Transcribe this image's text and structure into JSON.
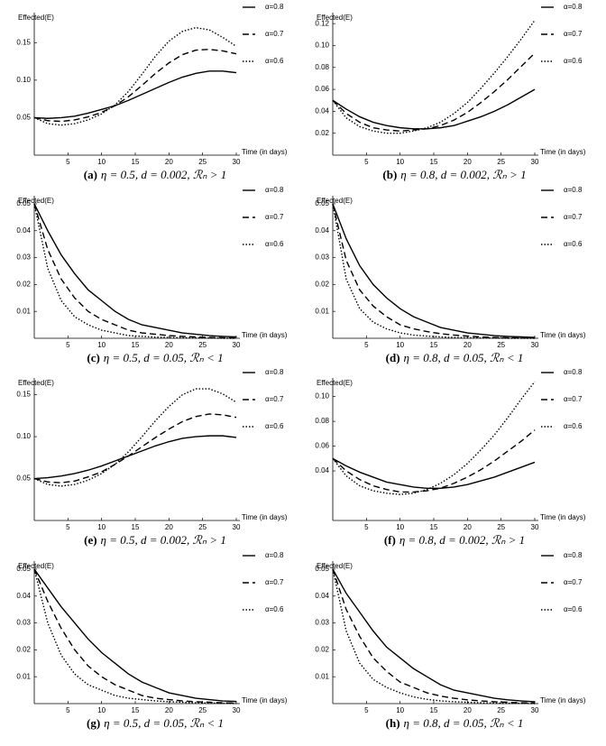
{
  "chart_data": [
    {
      "type": "line",
      "label": "(a)",
      "caption": "η = 0.5, d = 0.002, ℛₙ > 1",
      "ylabel": "Effected(E)",
      "xlabel": "Time (in days)",
      "x": [
        0,
        2,
        4,
        6,
        8,
        10,
        12,
        14,
        16,
        18,
        20,
        22,
        24,
        26,
        28,
        30
      ],
      "xlim": [
        0,
        30
      ],
      "xticks": [
        5,
        10,
        15,
        20,
        25,
        30
      ],
      "ylim": [
        0,
        0.19
      ],
      "yticks": [
        0.05,
        {
          "value": 0.1,
          "label": "0.10"
        },
        0.15
      ],
      "series": [
        {
          "name": "α=0.8",
          "color": "#000",
          "dash": "solid",
          "values": [
            0.05,
            0.049,
            0.05,
            0.052,
            0.056,
            0.061,
            0.066,
            0.073,
            0.081,
            0.089,
            0.097,
            0.104,
            0.109,
            0.112,
            0.112,
            0.11
          ]
        },
        {
          "name": "α=0.7",
          "color": "#000",
          "dash": "dashed",
          "values": [
            0.05,
            0.046,
            0.045,
            0.047,
            0.051,
            0.057,
            0.066,
            0.078,
            0.093,
            0.109,
            0.123,
            0.134,
            0.14,
            0.141,
            0.139,
            0.135
          ]
        },
        {
          "name": "α=0.6",
          "color": "#000",
          "dash": "dotted",
          "values": [
            0.05,
            0.042,
            0.04,
            0.042,
            0.047,
            0.055,
            0.067,
            0.085,
            0.108,
            0.132,
            0.152,
            0.165,
            0.17,
            0.167,
            0.157,
            0.145
          ]
        }
      ]
    },
    {
      "type": "line",
      "label": "(b)",
      "caption": "η = 0.8, d = 0.002, ℛₙ > 1",
      "ylabel": "Effected(E)",
      "xlabel": "Time (in days)",
      "x": [
        0,
        2,
        4,
        6,
        8,
        10,
        12,
        14,
        16,
        18,
        20,
        22,
        24,
        26,
        28,
        30
      ],
      "xlim": [
        0,
        30
      ],
      "xticks": [
        5,
        10,
        15,
        20,
        25,
        30
      ],
      "ylim": [
        0,
        0.13
      ],
      "yticks": [
        0.02,
        0.04,
        0.06,
        0.08,
        {
          "value": 0.1,
          "label": "0.10"
        },
        0.12
      ],
      "series": [
        {
          "name": "α=0.8",
          "color": "#000",
          "dash": "solid",
          "values": [
            0.05,
            0.042,
            0.035,
            0.03,
            0.027,
            0.025,
            0.024,
            0.024,
            0.025,
            0.027,
            0.031,
            0.035,
            0.04,
            0.046,
            0.053,
            0.06
          ]
        },
        {
          "name": "α=0.7",
          "color": "#000",
          "dash": "dashed",
          "values": [
            0.05,
            0.038,
            0.03,
            0.025,
            0.023,
            0.022,
            0.023,
            0.024,
            0.027,
            0.032,
            0.039,
            0.048,
            0.058,
            0.069,
            0.081,
            0.093
          ]
        },
        {
          "name": "α=0.6",
          "color": "#000",
          "dash": "dotted",
          "values": [
            0.05,
            0.034,
            0.026,
            0.022,
            0.02,
            0.02,
            0.022,
            0.025,
            0.03,
            0.038,
            0.048,
            0.061,
            0.075,
            0.09,
            0.106,
            0.123
          ]
        }
      ]
    },
    {
      "type": "line",
      "label": "(c)",
      "caption": "η = 0.5, d = 0.05, ℛₙ < 1",
      "ylabel": "Effected(E)",
      "xlabel": "Time (in days)",
      "x": [
        0,
        2,
        4,
        6,
        8,
        10,
        12,
        14,
        16,
        18,
        20,
        22,
        24,
        26,
        28,
        30
      ],
      "xlim": [
        0,
        30
      ],
      "xticks": [
        5,
        10,
        15,
        20,
        25,
        30
      ],
      "ylim": [
        0,
        0.053
      ],
      "yticks": [
        0.01,
        0.02,
        0.03,
        0.04,
        0.05
      ],
      "series": [
        {
          "name": "α=0.8",
          "color": "#000",
          "dash": "solid",
          "values": [
            0.05,
            0.04,
            0.031,
            0.024,
            0.018,
            0.014,
            0.01,
            0.007,
            0.005,
            0.004,
            0.003,
            0.002,
            0.0015,
            0.001,
            0.0007,
            0.0005
          ]
        },
        {
          "name": "α=0.7",
          "color": "#000",
          "dash": "dashed",
          "values": [
            0.05,
            0.033,
            0.022,
            0.015,
            0.01,
            0.007,
            0.005,
            0.003,
            0.002,
            0.0015,
            0.001,
            0.0007,
            0.0005,
            0.0003,
            0.0002,
            0.0001
          ]
        },
        {
          "name": "α=0.6",
          "color": "#000",
          "dash": "dotted",
          "values": [
            0.05,
            0.026,
            0.014,
            0.008,
            0.005,
            0.003,
            0.002,
            0.001,
            0.0007,
            0.0004,
            0.0003,
            0.0002,
            0.0001,
            0.0001,
            0,
            0
          ]
        }
      ]
    },
    {
      "type": "line",
      "label": "(d)",
      "caption": "η = 0.8, d = 0.05, ℛₙ < 1",
      "ylabel": "Effected(E)",
      "xlabel": "Time (in days)",
      "x": [
        0,
        2,
        4,
        6,
        8,
        10,
        12,
        14,
        16,
        18,
        20,
        22,
        24,
        26,
        28,
        30
      ],
      "xlim": [
        0,
        30
      ],
      "xticks": [
        5,
        10,
        15,
        20,
        25,
        30
      ],
      "ylim": [
        0,
        0.053
      ],
      "yticks": [
        0.01,
        0.02,
        0.03,
        0.04,
        0.05
      ],
      "series": [
        {
          "name": "α=0.8",
          "color": "#000",
          "dash": "solid",
          "values": [
            0.05,
            0.037,
            0.027,
            0.02,
            0.015,
            0.011,
            0.008,
            0.006,
            0.004,
            0.003,
            0.002,
            0.0015,
            0.001,
            0.0007,
            0.0005,
            0.0003
          ]
        },
        {
          "name": "α=0.7",
          "color": "#000",
          "dash": "dashed",
          "values": [
            0.05,
            0.029,
            0.018,
            0.012,
            0.008,
            0.005,
            0.0035,
            0.0025,
            0.0017,
            0.0012,
            0.0008,
            0.0005,
            0.0003,
            0.0002,
            0.0001,
            0.0001
          ]
        },
        {
          "name": "α=0.6",
          "color": "#000",
          "dash": "dotted",
          "values": [
            0.05,
            0.022,
            0.011,
            0.006,
            0.0035,
            0.002,
            0.0012,
            0.0008,
            0.0005,
            0.0003,
            0.0002,
            0.0001,
            0.0001,
            0,
            0,
            0
          ]
        }
      ]
    },
    {
      "type": "line",
      "label": "(e)",
      "caption": "η = 0.5, d = 0.002, ℛₙ > 1",
      "ylabel": "Effected(E)",
      "xlabel": "Time (in days)",
      "x": [
        0,
        2,
        4,
        6,
        8,
        10,
        12,
        14,
        16,
        18,
        20,
        22,
        24,
        26,
        28,
        30
      ],
      "xlim": [
        0,
        30
      ],
      "xticks": [
        5,
        10,
        15,
        20,
        25,
        30
      ],
      "ylim": [
        0,
        0.17
      ],
      "yticks": [
        0.05,
        {
          "value": 0.1,
          "label": "0.10"
        },
        0.15
      ],
      "series": [
        {
          "name": "α=0.8",
          "color": "#000",
          "dash": "solid",
          "values": [
            0.05,
            0.051,
            0.053,
            0.056,
            0.06,
            0.065,
            0.071,
            0.077,
            0.083,
            0.089,
            0.094,
            0.098,
            0.1,
            0.101,
            0.101,
            0.099
          ]
        },
        {
          "name": "α=0.7",
          "color": "#000",
          "dash": "dashed",
          "values": [
            0.05,
            0.046,
            0.045,
            0.047,
            0.052,
            0.058,
            0.067,
            0.077,
            0.088,
            0.099,
            0.109,
            0.118,
            0.124,
            0.127,
            0.126,
            0.123
          ]
        },
        {
          "name": "α=0.6",
          "color": "#000",
          "dash": "dotted",
          "values": [
            0.05,
            0.043,
            0.041,
            0.043,
            0.048,
            0.056,
            0.067,
            0.082,
            0.1,
            0.119,
            0.136,
            0.15,
            0.157,
            0.157,
            0.151,
            0.141
          ]
        }
      ]
    },
    {
      "type": "line",
      "label": "(f)",
      "caption": "η = 0.8, d = 0.002, ℛₙ > 1",
      "ylabel": "Effected(E)",
      "xlabel": "Time (in days)",
      "x": [
        0,
        2,
        4,
        6,
        8,
        10,
        12,
        14,
        16,
        18,
        20,
        22,
        24,
        26,
        28,
        30
      ],
      "xlim": [
        0,
        30
      ],
      "xticks": [
        5,
        10,
        15,
        20,
        25,
        30
      ],
      "ylim": [
        0,
        0.115
      ],
      "yticks": [
        0.04,
        0.06,
        0.08,
        {
          "value": 0.1,
          "label": "0.10"
        }
      ],
      "series": [
        {
          "name": "α=0.8",
          "color": "#000",
          "dash": "solid",
          "values": [
            0.05,
            0.044,
            0.039,
            0.035,
            0.031,
            0.029,
            0.027,
            0.026,
            0.026,
            0.027,
            0.029,
            0.032,
            0.035,
            0.039,
            0.043,
            0.047
          ]
        },
        {
          "name": "α=0.7",
          "color": "#000",
          "dash": "dashed",
          "values": [
            0.05,
            0.04,
            0.033,
            0.028,
            0.025,
            0.023,
            0.023,
            0.024,
            0.026,
            0.03,
            0.035,
            0.041,
            0.048,
            0.056,
            0.064,
            0.073
          ]
        },
        {
          "name": "α=0.6",
          "color": "#000",
          "dash": "dotted",
          "values": [
            0.05,
            0.036,
            0.028,
            0.024,
            0.022,
            0.021,
            0.022,
            0.025,
            0.03,
            0.037,
            0.046,
            0.057,
            0.069,
            0.083,
            0.098,
            0.112
          ]
        }
      ]
    },
    {
      "type": "line",
      "label": "(g)",
      "caption": "η = 0.5, d = 0.05, ℛₙ < 1",
      "ylabel": "Effected(E)",
      "xlabel": "Time (in days)",
      "x": [
        0,
        2,
        4,
        6,
        8,
        10,
        12,
        14,
        16,
        18,
        20,
        22,
        24,
        26,
        28,
        30
      ],
      "xlim": [
        0,
        30
      ],
      "xticks": [
        5,
        10,
        15,
        20,
        25,
        30
      ],
      "ylim": [
        0,
        0.053
      ],
      "yticks": [
        0.01,
        0.02,
        0.03,
        0.04,
        0.05
      ],
      "series": [
        {
          "name": "α=0.8",
          "color": "#000",
          "dash": "solid",
          "values": [
            0.05,
            0.043,
            0.036,
            0.03,
            0.024,
            0.019,
            0.015,
            0.011,
            0.008,
            0.006,
            0.004,
            0.003,
            0.002,
            0.0015,
            0.001,
            0.0008
          ]
        },
        {
          "name": "α=0.7",
          "color": "#000",
          "dash": "dashed",
          "values": [
            0.05,
            0.038,
            0.028,
            0.02,
            0.014,
            0.01,
            0.007,
            0.005,
            0.003,
            0.002,
            0.0015,
            0.001,
            0.0007,
            0.0005,
            0.0003,
            0.0002
          ]
        },
        {
          "name": "α=0.6",
          "color": "#000",
          "dash": "dotted",
          "values": [
            0.05,
            0.03,
            0.018,
            0.011,
            0.007,
            0.005,
            0.003,
            0.002,
            0.0015,
            0.001,
            0.0007,
            0.0005,
            0.0003,
            0.0002,
            0.0001,
            0.0001
          ]
        }
      ]
    },
    {
      "type": "line",
      "label": "(h)",
      "caption": "η = 0.8, d = 0.05, ℛₙ < 1",
      "ylabel": "Effected(E)",
      "xlabel": "Time (in days)",
      "x": [
        0,
        2,
        4,
        6,
        8,
        10,
        12,
        14,
        16,
        18,
        20,
        22,
        24,
        26,
        28,
        30
      ],
      "xlim": [
        0,
        30
      ],
      "xticks": [
        5,
        10,
        15,
        20,
        25,
        30
      ],
      "ylim": [
        0,
        0.053
      ],
      "yticks": [
        0.01,
        0.02,
        0.03,
        0.04,
        0.05
      ],
      "series": [
        {
          "name": "α=0.8",
          "color": "#000",
          "dash": "solid",
          "values": [
            0.05,
            0.041,
            0.034,
            0.027,
            0.021,
            0.017,
            0.013,
            0.01,
            0.007,
            0.005,
            0.004,
            0.003,
            0.002,
            0.0014,
            0.001,
            0.0007
          ]
        },
        {
          "name": "α=0.7",
          "color": "#000",
          "dash": "dashed",
          "values": [
            0.05,
            0.035,
            0.025,
            0.017,
            0.012,
            0.008,
            0.006,
            0.004,
            0.0028,
            0.002,
            0.0014,
            0.001,
            0.0007,
            0.0005,
            0.0003,
            0.0002
          ]
        },
        {
          "name": "α=0.6",
          "color": "#000",
          "dash": "dotted",
          "values": [
            0.05,
            0.027,
            0.015,
            0.009,
            0.006,
            0.004,
            0.0025,
            0.0016,
            0.001,
            0.0007,
            0.0005,
            0.0003,
            0.0002,
            0.0001,
            0.0001,
            0
          ]
        }
      ]
    }
  ]
}
